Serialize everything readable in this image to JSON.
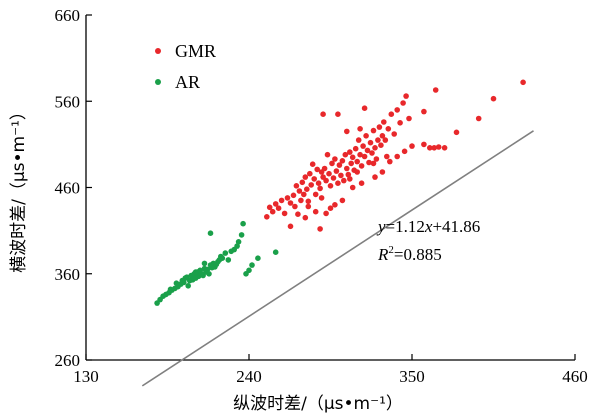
{
  "chart_data": {
    "type": "scatter",
    "xlabel": "纵波时差/（μs•m⁻¹）",
    "ylabel": "横波时差/（μs•m⁻¹）",
    "xlim": [
      130,
      460
    ],
    "ylim": [
      260,
      660
    ],
    "xticks": [
      130,
      240,
      350,
      460
    ],
    "yticks": [
      260,
      360,
      460,
      560,
      660
    ],
    "legend_position": "top-left",
    "colors": {
      "GMR": "#e8282b",
      "AR": "#1aa04a",
      "fit": "#808080"
    },
    "series": [
      {
        "name": "GMR",
        "points": [
          [
            252,
            426
          ],
          [
            254,
            437
          ],
          [
            256,
            432
          ],
          [
            258,
            441
          ],
          [
            260,
            436
          ],
          [
            262,
            445
          ],
          [
            264,
            430
          ],
          [
            266,
            448
          ],
          [
            268,
            442
          ],
          [
            270,
            451
          ],
          [
            271,
            438
          ],
          [
            272,
            462
          ],
          [
            273,
            429
          ],
          [
            274,
            456
          ],
          [
            275,
            445
          ],
          [
            276,
            466
          ],
          [
            277,
            452
          ],
          [
            278,
            472
          ],
          [
            279,
            458
          ],
          [
            280,
            444
          ],
          [
            281,
            476
          ],
          [
            282,
            463
          ],
          [
            283,
            487
          ],
          [
            284,
            470
          ],
          [
            285,
            452
          ],
          [
            286,
            481
          ],
          [
            287,
            465
          ],
          [
            288,
            459
          ],
          [
            289,
            478
          ],
          [
            290,
            472
          ],
          [
            291,
            482
          ],
          [
            292,
            468
          ],
          [
            293,
            498
          ],
          [
            294,
            476
          ],
          [
            295,
            462
          ],
          [
            296,
            488
          ],
          [
            297,
            471
          ],
          [
            298,
            493
          ],
          [
            299,
            479
          ],
          [
            300,
            465
          ],
          [
            301,
            486
          ],
          [
            302,
            474
          ],
          [
            303,
            491
          ],
          [
            304,
            468
          ],
          [
            305,
            498
          ],
          [
            306,
            482
          ],
          [
            307,
            475
          ],
          [
            308,
            501
          ],
          [
            309,
            488
          ],
          [
            310,
            495
          ],
          [
            311,
            480
          ],
          [
            312,
            505
          ],
          [
            313,
            490
          ],
          [
            314,
            515
          ],
          [
            315,
            498
          ],
          [
            316,
            485
          ],
          [
            317,
            508
          ],
          [
            318,
            496
          ],
          [
            319,
            520
          ],
          [
            320,
            503
          ],
          [
            321,
            489
          ],
          [
            322,
            512
          ],
          [
            323,
            500
          ],
          [
            324,
            526
          ],
          [
            325,
            506
          ],
          [
            326,
            493
          ],
          [
            327,
            515
          ],
          [
            328,
            530
          ],
          [
            329,
            509
          ],
          [
            330,
            520
          ],
          [
            331,
            536
          ],
          [
            332,
            515
          ],
          [
            334,
            528
          ],
          [
            336,
            545
          ],
          [
            338,
            522
          ],
          [
            340,
            550
          ],
          [
            342,
            535
          ],
          [
            344,
            558
          ],
          [
            346,
            566
          ],
          [
            348,
            540
          ],
          [
            290,
            545
          ],
          [
            300,
            545
          ],
          [
            306,
            525
          ],
          [
            315,
            528
          ],
          [
            318,
            552
          ],
          [
            285,
            432
          ],
          [
            280,
            438
          ],
          [
            292,
            430
          ],
          [
            298,
            440
          ],
          [
            303,
            445
          ],
          [
            295,
            436
          ],
          [
            289,
            448
          ],
          [
            278,
            425
          ],
          [
            268,
            415
          ],
          [
            288,
            412
          ],
          [
            310,
            460
          ],
          [
            316,
            465
          ],
          [
            325,
            472
          ],
          [
            330,
            478
          ],
          [
            335,
            490
          ],
          [
            340,
            496
          ],
          [
            345,
            502
          ],
          [
            350,
            508
          ],
          [
            358,
            510
          ],
          [
            362,
            506
          ],
          [
            365,
            506
          ],
          [
            368,
            507
          ],
          [
            372,
            506
          ],
          [
            380,
            524
          ],
          [
            395,
            540
          ],
          [
            405,
            563
          ],
          [
            425,
            582
          ],
          [
            358,
            548
          ],
          [
            366,
            573
          ],
          [
            308,
            470
          ],
          [
            313,
            478
          ],
          [
            324,
            488
          ],
          [
            333,
            496
          ]
        ]
      },
      {
        "name": "AR",
        "points": [
          [
            178,
            326
          ],
          [
            180,
            330
          ],
          [
            182,
            334
          ],
          [
            184,
            336
          ],
          [
            186,
            338
          ],
          [
            188,
            341
          ],
          [
            190,
            343
          ],
          [
            192,
            345
          ],
          [
            194,
            348
          ],
          [
            195,
            352
          ],
          [
            196,
            350
          ],
          [
            198,
            356
          ],
          [
            199,
            346
          ],
          [
            200,
            352
          ],
          [
            201,
            358
          ],
          [
            202,
            353
          ],
          [
            203,
            360
          ],
          [
            204,
            355
          ],
          [
            205,
            362
          ],
          [
            206,
            357
          ],
          [
            207,
            364
          ],
          [
            208,
            360
          ],
          [
            209,
            358
          ],
          [
            210,
            366
          ],
          [
            211,
            362
          ],
          [
            212,
            365
          ],
          [
            213,
            360
          ],
          [
            214,
            370
          ],
          [
            215,
            367
          ],
          [
            216,
            372
          ],
          [
            217,
            368
          ],
          [
            218,
            371
          ],
          [
            219,
            374
          ],
          [
            220,
            376
          ],
          [
            221,
            380
          ],
          [
            222,
            378
          ],
          [
            224,
            384
          ],
          [
            226,
            376
          ],
          [
            228,
            386
          ],
          [
            230,
            388
          ],
          [
            232,
            392
          ],
          [
            233,
            397
          ],
          [
            235,
            405
          ],
          [
            236,
            418
          ],
          [
            238,
            360
          ],
          [
            240,
            364
          ],
          [
            242,
            370
          ],
          [
            246,
            378
          ],
          [
            258,
            385
          ],
          [
            214,
            407
          ],
          [
            210,
            372
          ],
          [
            204,
            362
          ],
          [
            197,
            355
          ],
          [
            191,
            349
          ],
          [
            187,
            342
          ]
        ]
      }
    ],
    "fit": {
      "slope": 1.12,
      "intercept": 41.86,
      "x_start": 168,
      "x_end": 432
    },
    "annotation": {
      "equation": {
        "var_y": "y",
        "rest1": "=1.12",
        "var_x": "x",
        "rest2": "+41.86"
      },
      "r2": {
        "r": "R",
        "sup": "2",
        "value": "=0.885"
      }
    }
  }
}
